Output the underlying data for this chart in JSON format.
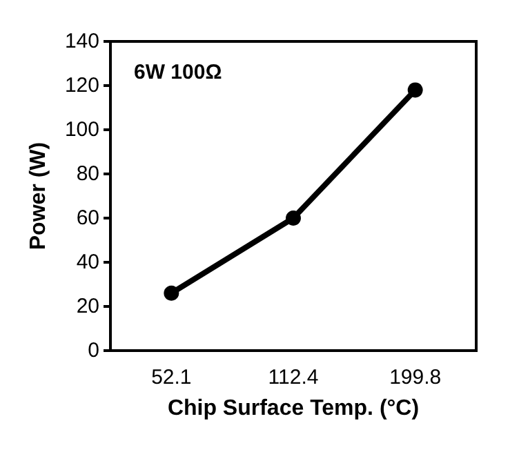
{
  "chart_data": {
    "type": "line",
    "title": "6W 100Ω",
    "xlabel": "Chip Surface Temp. (°C)",
    "ylabel": "Power (W)",
    "categories": [
      "52.1",
      "112.4",
      "199.8"
    ],
    "series": [
      {
        "color": "#000000",
        "values": [
          26,
          60,
          118
        ]
      }
    ],
    "ylim": [
      0,
      140
    ],
    "yticks": [
      0,
      20,
      40,
      60,
      80,
      100,
      120,
      140
    ],
    "grid": false,
    "marker": "circle",
    "line_style": "solid"
  }
}
